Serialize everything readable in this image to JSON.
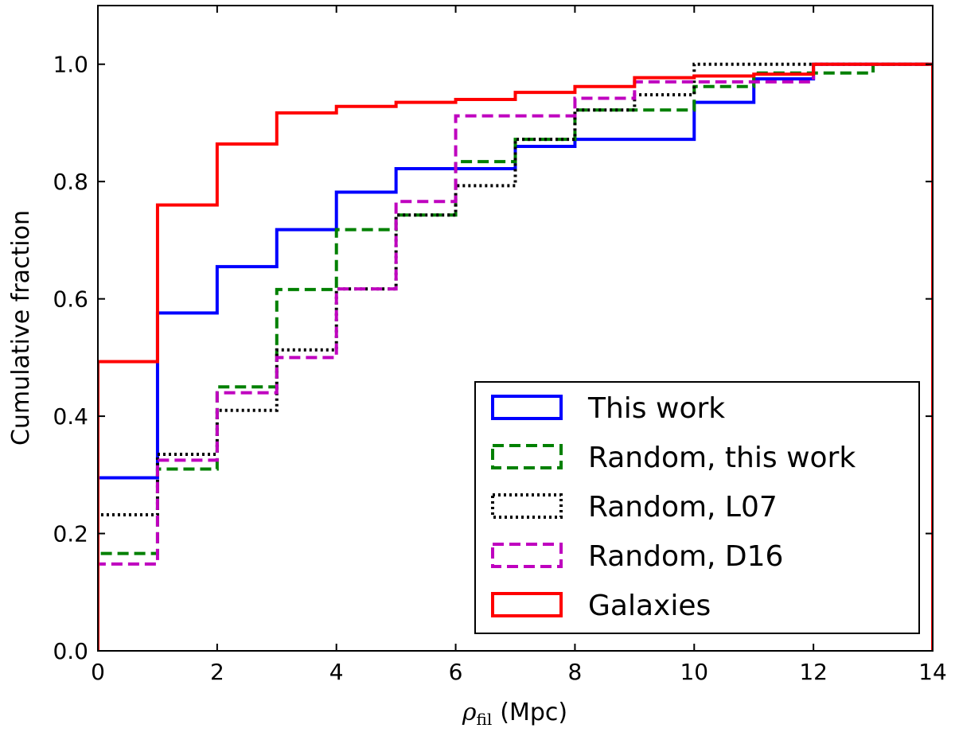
{
  "chart_data": {
    "type": "line",
    "step": true,
    "xlabel_symbol": "ρ",
    "xlabel_subscript": "fil",
    "xlabel_unit": "(Mpc)",
    "ylabel": "Cumulative fraction",
    "xlim": [
      0,
      14
    ],
    "ylim": [
      0,
      1.1
    ],
    "xticks": [
      0,
      2,
      4,
      6,
      8,
      10,
      12,
      14
    ],
    "yticks": [
      0.0,
      0.2,
      0.4,
      0.6,
      0.8,
      1.0
    ],
    "xtick_labels": [
      "0",
      "2",
      "4",
      "6",
      "8",
      "10",
      "12",
      "14"
    ],
    "ytick_labels": [
      "0.0",
      "0.2",
      "0.4",
      "0.6",
      "0.8",
      "1.0"
    ],
    "grid": false,
    "legend_position": "bottom-right",
    "bin_edges": [
      0,
      1,
      2,
      3,
      4,
      5,
      6,
      7,
      8,
      9,
      10,
      11,
      12,
      13,
      14
    ],
    "series": [
      {
        "name": "This work",
        "color": "#0000ff",
        "style": "solid",
        "values": [
          0.295,
          0.576,
          0.655,
          0.718,
          0.782,
          0.822,
          0.822,
          0.86,
          0.872,
          0.872,
          0.935,
          0.975,
          1.0,
          1.0
        ]
      },
      {
        "name": "Random, this work",
        "color": "#008000",
        "style": "dashed",
        "values": [
          0.166,
          0.31,
          0.45,
          0.616,
          0.718,
          0.743,
          0.834,
          0.872,
          0.922,
          0.922,
          0.962,
          0.985,
          0.985,
          1.0
        ]
      },
      {
        "name": "Random, L07",
        "color": "#000000",
        "style": "dotted",
        "values": [
          0.232,
          0.335,
          0.41,
          0.513,
          0.617,
          0.743,
          0.793,
          0.872,
          0.922,
          0.948,
          1.0,
          1.0,
          1.0,
          1.0
        ]
      },
      {
        "name": "Random, D16",
        "color": "#bf00bf",
        "style": "dashed",
        "values": [
          0.148,
          0.325,
          0.44,
          0.5,
          0.617,
          0.766,
          0.912,
          0.912,
          0.942,
          0.97,
          0.97,
          0.97,
          1.0,
          1.0
        ]
      },
      {
        "name": "Galaxies",
        "color": "#ff0000",
        "style": "solid",
        "values": [
          0.493,
          0.76,
          0.864,
          0.917,
          0.928,
          0.935,
          0.94,
          0.952,
          0.962,
          0.977,
          0.98,
          0.983,
          1.0,
          1.0
        ]
      }
    ]
  }
}
